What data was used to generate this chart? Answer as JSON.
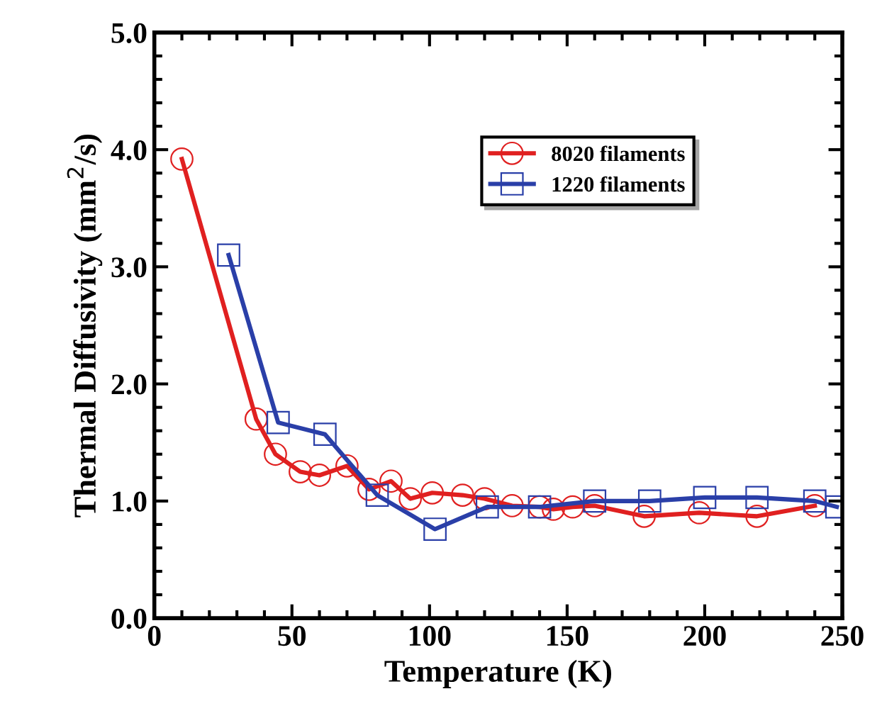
{
  "chart_data": {
    "type": "line",
    "xlabel": "Temperature (K)",
    "ylabel": "Thermal Diffusivity (mm$^{2}$/s)",
    "xlim": [
      0,
      250
    ],
    "xticks": [
      0,
      50,
      100,
      150,
      200,
      250
    ],
    "ylim": [
      0,
      5
    ],
    "yticks": [
      {
        "value": 0,
        "label": "0.0"
      },
      {
        "value": 1,
        "label": "1.0"
      },
      {
        "value": 2,
        "label": "2.0"
      },
      {
        "value": 3,
        "label": "3.0"
      },
      {
        "value": 4,
        "label": "4.0"
      },
      {
        "value": 5,
        "label": "5.0"
      }
    ],
    "legend": "top right",
    "grid": false,
    "series": [
      {
        "name": "8020 filaments",
        "color": "#e02020",
        "marker": "circle",
        "x": [
          10,
          37,
          44,
          53,
          60,
          70,
          78,
          86,
          93,
          101,
          112,
          120,
          130,
          140,
          145,
          152,
          160,
          178,
          198,
          219,
          240
        ],
        "values": [
          3.92,
          1.7,
          1.4,
          1.25,
          1.22,
          1.3,
          1.1,
          1.17,
          1.02,
          1.07,
          1.05,
          1.02,
          0.96,
          0.95,
          0.93,
          0.95,
          0.96,
          0.87,
          0.9,
          0.87,
          0.96
        ]
      },
      {
        "name": "1220 filaments",
        "color": "#2a3fa8",
        "marker": "square",
        "x": [
          27,
          45,
          62,
          81,
          102,
          121,
          140,
          160,
          180,
          200,
          219,
          240,
          248
        ],
        "values": [
          3.1,
          1.67,
          1.57,
          1.05,
          0.76,
          0.95,
          0.95,
          1.0,
          1.0,
          1.03,
          1.03,
          1.0,
          0.95
        ]
      }
    ]
  }
}
